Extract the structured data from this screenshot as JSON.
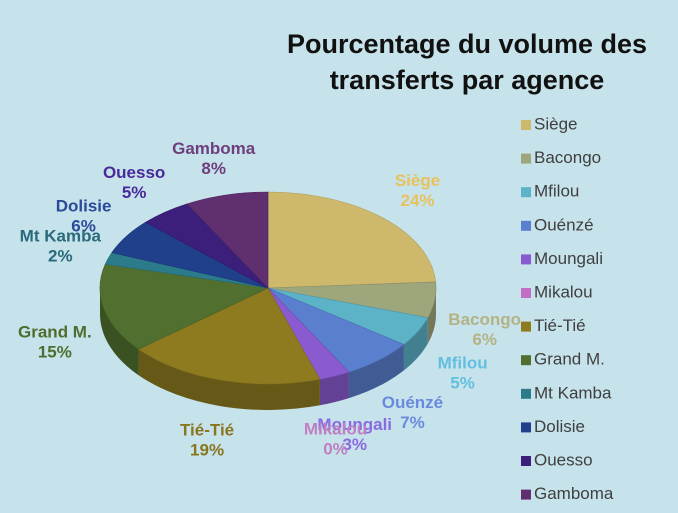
{
  "chart_data": {
    "type": "pie3d",
    "title": "Pourcentage du volume des transferts par agence",
    "categories": [
      "Siège",
      "Bacongo",
      "Mfilou",
      "Ouénzé",
      "Moungali",
      "Mikalou",
      "Tié-Tié",
      "Grand M.",
      "Mt Kamba",
      "Dolisie",
      "Ouesso",
      "Gamboma"
    ],
    "values": [
      24,
      6,
      5,
      7,
      3,
      0,
      19,
      15,
      2,
      6,
      5,
      8
    ],
    "value_labels": [
      "24%",
      "6%",
      "5%",
      "7%",
      "3%",
      "0%",
      "19%",
      "15%",
      "2%",
      "6%",
      "5%",
      "8%"
    ],
    "colors": [
      "#cdb86c",
      "#9ea67c",
      "#5cb2c6",
      "#5a7fcf",
      "#8a5bd0",
      "#c06fc2",
      "#8e7b20",
      "#51702f",
      "#2b7b8b",
      "#20408c",
      "#3b1f7b",
      "#5f2f70"
    ],
    "label_colors": [
      "#e9c25e",
      "#b3b386",
      "#63bfe0",
      "#6a8ae0",
      "#8a6ae0",
      "#c07fc2",
      "#8a7520",
      "#4e6e2e",
      "#2a6a7a",
      "#2a4a9a",
      "#4a2a9a",
      "#6e3e7e"
    ],
    "legend": "right"
  }
}
